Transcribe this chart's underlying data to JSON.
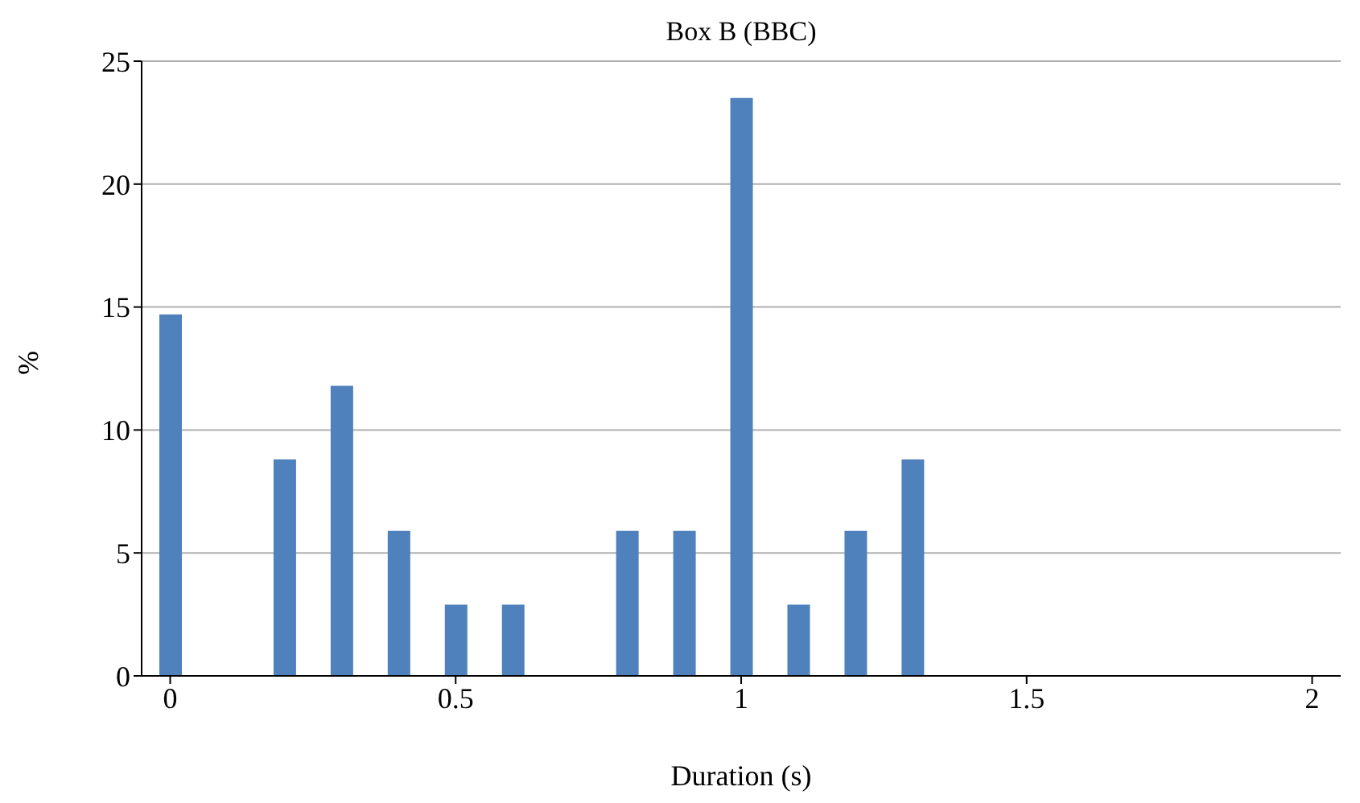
{
  "chart_data": {
    "type": "bar",
    "title": "Box B (BBC)",
    "xlabel": "Duration (s)",
    "ylabel": "%",
    "x": [
      0,
      0.1,
      0.2,
      0.3,
      0.4,
      0.5,
      0.6,
      0.7,
      0.8,
      0.9,
      1.0,
      1.1,
      1.2,
      1.3,
      1.4,
      1.5,
      1.6,
      1.7,
      1.8,
      1.9,
      2.0
    ],
    "values": [
      14.7,
      0,
      8.8,
      11.8,
      5.9,
      2.9,
      2.9,
      0,
      5.9,
      5.9,
      23.5,
      2.9,
      5.9,
      8.8,
      0,
      0,
      0,
      0,
      0,
      0,
      0
    ],
    "color": "#4f81bd",
    "xlim": [
      -0.05,
      2.05
    ],
    "xticks": [
      0,
      0.5,
      1,
      1.5,
      2
    ],
    "ylim": [
      0,
      25
    ],
    "yticks": [
      0,
      5,
      10,
      15,
      20,
      25
    ],
    "grid": "y"
  }
}
